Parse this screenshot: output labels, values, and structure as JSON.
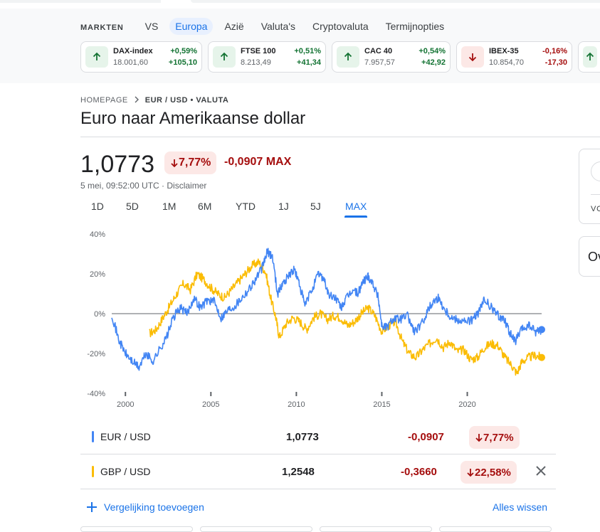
{
  "markets": {
    "label": "MARKTEN",
    "tabs": [
      "VS",
      "Europa",
      "Azië",
      "Valuta's",
      "Cryptovaluta",
      "Termijnopties"
    ],
    "active_tab": "Europa",
    "tickers": [
      {
        "name": "DAX-index",
        "price": "18.001,60",
        "pct": "+0,59%",
        "abs": "+105,10",
        "dir": "up"
      },
      {
        "name": "FTSE 100",
        "price": "8.213,49",
        "pct": "+0,51%",
        "abs": "+41,34",
        "dir": "up"
      },
      {
        "name": "CAC 40",
        "price": "7.957,57",
        "pct": "+0,54%",
        "abs": "+42,92",
        "dir": "up"
      },
      {
        "name": "IBEX-35",
        "price": "10.854,70",
        "pct": "-0,16%",
        "abs": "-17,30",
        "dir": "down"
      }
    ]
  },
  "breadcrumb": {
    "home": "HOMEPAGE",
    "current": "EUR / USD • VALUTA"
  },
  "title": "Euro naar Amerikaanse dollar",
  "quote": {
    "price": "1,0773",
    "pct_change": "7,77%",
    "abs_change": "-0,0907 MAX",
    "timestamp": "5 mei, 09:52:00 UTC · Disclaimer"
  },
  "ranges": [
    "1D",
    "5D",
    "1M",
    "6M",
    "YTD",
    "1J",
    "5J",
    "MAX"
  ],
  "active_range": "MAX",
  "side": {
    "label_1": "VO",
    "label_2": "Ov"
  },
  "chart_data": {
    "type": "line",
    "ylabel": "",
    "yticks": [
      "40%",
      "20%",
      "0%",
      "-20%",
      "-40%"
    ],
    "ylim": [
      -40,
      40
    ],
    "xticks": [
      "2000",
      "2005",
      "2010",
      "2015",
      "2020"
    ],
    "xlim": [
      1999.2,
      2024.35
    ],
    "series": [
      {
        "name": "EUR / USD",
        "color": "#4285f4",
        "x": [
          1999.2,
          1999.6,
          2000.0,
          2000.4,
          2000.8,
          2001.2,
          2001.6,
          2002.0,
          2002.4,
          2002.8,
          2003.2,
          2003.6,
          2004.0,
          2004.4,
          2004.8,
          2005.2,
          2005.6,
          2006.0,
          2006.4,
          2006.8,
          2007.2,
          2007.6,
          2008.0,
          2008.3,
          2008.6,
          2008.9,
          2009.2,
          2009.6,
          2009.9,
          2010.2,
          2010.5,
          2010.9,
          2011.3,
          2011.6,
          2011.9,
          2012.3,
          2012.6,
          2012.9,
          2013.3,
          2013.6,
          2013.9,
          2014.2,
          2014.5,
          2014.8,
          2015.0,
          2015.3,
          2015.7,
          2016.0,
          2016.5,
          2016.9,
          2017.3,
          2017.7,
          2018.0,
          2018.3,
          2018.7,
          2019.1,
          2019.5,
          2019.9,
          2020.3,
          2020.7,
          2021.0,
          2021.4,
          2021.8,
          2022.2,
          2022.5,
          2022.8,
          2023.2,
          2023.6,
          2024.0,
          2024.35
        ],
        "y": [
          0,
          -13,
          -20,
          -24,
          -27,
          -20,
          -24,
          -18,
          -12,
          -2,
          3,
          0,
          8,
          3,
          7,
          6,
          -2,
          2,
          4,
          8,
          12,
          17,
          23,
          31,
          29,
          10,
          15,
          20,
          22,
          14,
          4,
          12,
          20,
          18,
          9,
          8,
          3,
          7,
          12,
          10,
          16,
          19,
          15,
          8,
          -6,
          -7,
          -2,
          -3,
          -1,
          -9,
          -6,
          2,
          6,
          8,
          2,
          -2,
          -3,
          -4,
          -3,
          1,
          7,
          3,
          -1,
          -3,
          -10,
          -14,
          -8,
          -6,
          -9,
          -8
        ]
      },
      {
        "name": "GBP / USD",
        "color": "#fbbc04",
        "x": [
          2001.4,
          2001.8,
          2002.2,
          2002.6,
          2003.0,
          2003.4,
          2003.8,
          2004.2,
          2004.6,
          2005.0,
          2005.4,
          2005.8,
          2006.2,
          2006.6,
          2007.0,
          2007.4,
          2007.8,
          2008.2,
          2008.5,
          2008.8,
          2009.0,
          2009.4,
          2009.8,
          2010.2,
          2010.6,
          2011.0,
          2011.4,
          2011.8,
          2012.2,
          2012.6,
          2013.0,
          2013.4,
          2013.8,
          2014.2,
          2014.6,
          2015.0,
          2015.4,
          2015.8,
          2016.2,
          2016.6,
          2017.0,
          2017.4,
          2017.8,
          2018.2,
          2018.6,
          2019.0,
          2019.4,
          2019.8,
          2020.2,
          2020.6,
          2021.0,
          2021.4,
          2021.8,
          2022.2,
          2022.6,
          2022.9,
          2023.2,
          2023.6,
          2024.0,
          2024.35
        ],
        "y": [
          -10,
          -8,
          -2,
          4,
          10,
          15,
          12,
          20,
          17,
          13,
          10,
          8,
          12,
          16,
          20,
          24,
          26,
          21,
          8,
          -2,
          -12,
          -5,
          -2,
          -4,
          -8,
          -2,
          0,
          -3,
          -1,
          -2,
          -6,
          -4,
          0,
          3,
          -1,
          -9,
          -6,
          -4,
          -14,
          -20,
          -22,
          -18,
          -15,
          -12,
          -17,
          -14,
          -19,
          -18,
          -23,
          -22,
          -17,
          -15,
          -16,
          -22,
          -26,
          -30,
          -24,
          -22,
          -21,
          -22
        ]
      }
    ],
    "grid": false
  },
  "comparisons": [
    {
      "name": "EUR / USD",
      "value": "1,0773",
      "change": "-0,0907",
      "pct": "7,77%",
      "color": "#4285f4"
    },
    {
      "name": "GBP / USD",
      "value": "1,2548",
      "change": "-0,3660",
      "pct": "22,58%",
      "color": "#fbbc04"
    }
  ],
  "actions": {
    "add_comparison": "Vergelijking toevoegen",
    "clear_all": "Alles wissen"
  }
}
